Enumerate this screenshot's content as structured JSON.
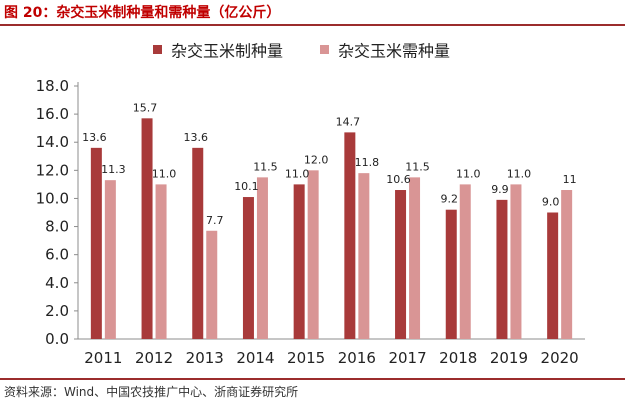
{
  "caption": {
    "label": "图 20：",
    "title": "杂交玉米制种量和需种量（亿公斤）"
  },
  "source": "资料来源：Wind、中国农技推广中心、浙商证券研究所",
  "colors": {
    "series1": "#a83a3a",
    "series2": "#d99595",
    "caption": "#c00000",
    "rule": "#9b2c2c"
  },
  "chart_data": {
    "type": "bar",
    "title": "杂交玉米制种量和需种量（亿公斤）",
    "xlabel": "",
    "ylabel": "",
    "ylim": [
      0,
      18
    ],
    "yticks": [
      "0.0",
      "2.0",
      "4.0",
      "6.0",
      "8.0",
      "10.0",
      "12.0",
      "14.0",
      "16.0",
      "18.0"
    ],
    "grid": false,
    "legend_position": "top",
    "categories": [
      "2011",
      "2012",
      "2013",
      "2014",
      "2015",
      "2016",
      "2017",
      "2018",
      "2019",
      "2020"
    ],
    "series": [
      {
        "name": "杂交玉米制种量",
        "values": [
          13.6,
          15.7,
          13.6,
          10.1,
          11.0,
          14.7,
          10.6,
          9.2,
          9.9,
          9.0
        ],
        "labels": [
          "13.6",
          "15.7",
          "13.6",
          "10.1",
          "11.0",
          "14.7",
          "10.6",
          "9.2",
          "9.9",
          "9.0"
        ]
      },
      {
        "name": "杂交玉米需种量",
        "values": [
          11.3,
          11.0,
          7.7,
          11.5,
          12.0,
          11.8,
          11.5,
          11.0,
          11.0,
          10.6
        ],
        "labels": [
          "11.3",
          "11.0",
          "7.7",
          "11.5",
          "12.0",
          "11.8",
          "11.5",
          "11.0",
          "11.0",
          "11"
        ]
      }
    ]
  }
}
